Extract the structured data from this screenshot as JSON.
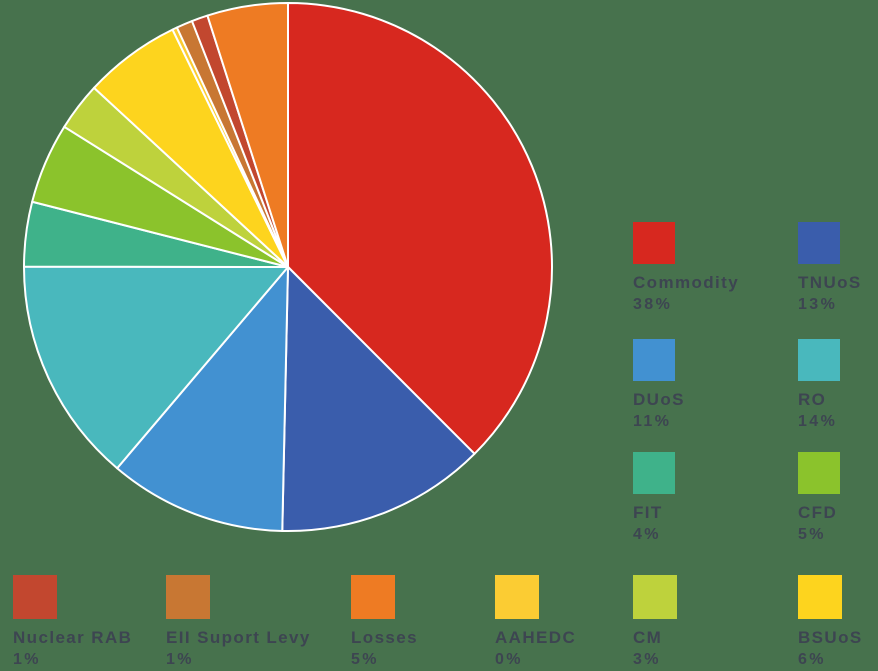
{
  "background_color": "#47724d",
  "text_color": "#3d4551",
  "chart_data": {
    "type": "pie",
    "title": "",
    "legend_position": "right-and-bottom",
    "start_angle": "12 o'clock, clockwise",
    "separator_color": "#ffffff",
    "slices": [
      {
        "label": "Commodity",
        "pct_label": "38%",
        "value": 38,
        "color": "#d7281f"
      },
      {
        "label": "TNUoS",
        "pct_label": "13%",
        "value": 13,
        "color": "#3a5dac"
      },
      {
        "label": "DUoS",
        "pct_label": "11%",
        "value": 11,
        "color": "#4291d1"
      },
      {
        "label": "RO",
        "pct_label": "14%",
        "value": 14,
        "color": "#49b8bd"
      },
      {
        "label": "FIT",
        "pct_label": "4%",
        "value": 4,
        "color": "#3fb28a"
      },
      {
        "label": "CFD",
        "pct_label": "5%",
        "value": 5,
        "color": "#8bc32c"
      },
      {
        "label": "CM",
        "pct_label": "3%",
        "value": 3,
        "color": "#bed23c"
      },
      {
        "label": "BSUoS",
        "pct_label": "6%",
        "value": 6,
        "color": "#fdd41e"
      },
      {
        "label": "AAHEDC",
        "pct_label": "0%",
        "value": 0,
        "color": "#fbcc33"
      },
      {
        "label": "EII Suport Levy",
        "pct_label": "1%",
        "value": 1,
        "color": "#c87733"
      },
      {
        "label": "Nuclear RAB",
        "pct_label": "1%",
        "value": 1,
        "color": "#c2472f"
      },
      {
        "label": "Losses",
        "pct_label": "5%",
        "value": 5,
        "color": "#ee7b23"
      }
    ]
  }
}
